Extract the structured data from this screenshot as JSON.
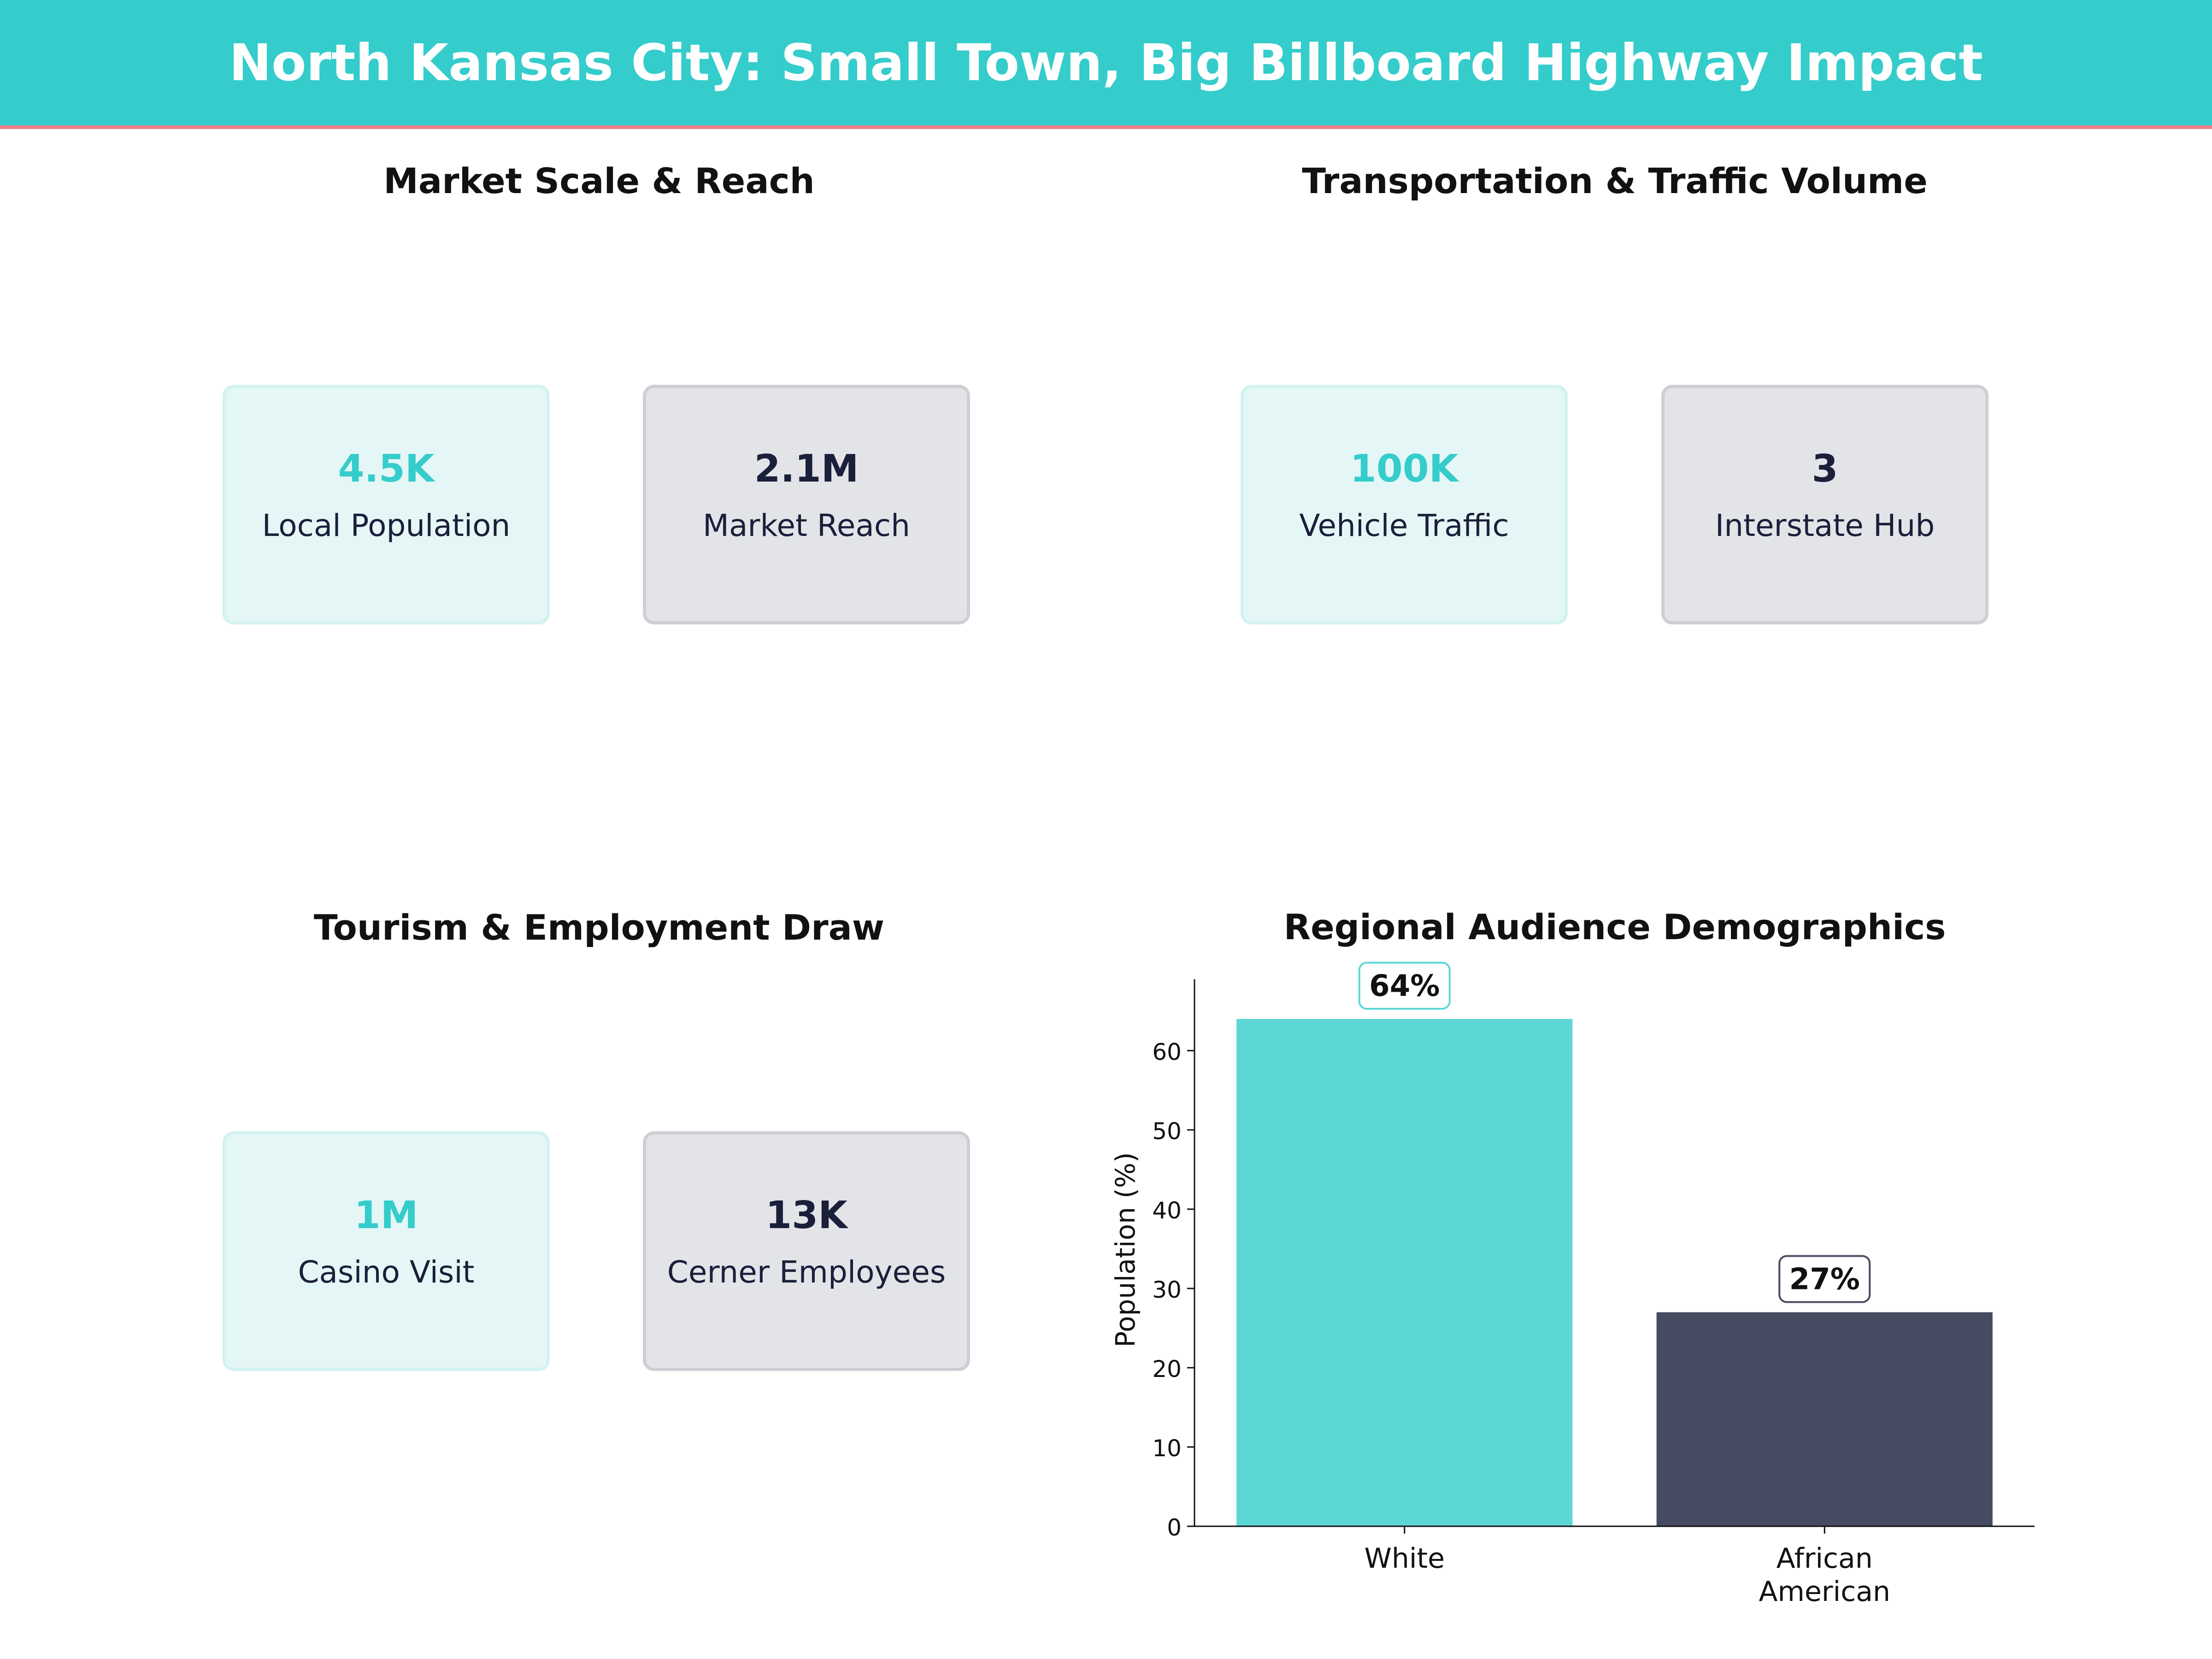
{
  "header": {
    "title": "North Kansas City: Small Town, Big Billboard Highway Impact",
    "background": "#35CCCC",
    "accent_line": "#F07F8A"
  },
  "panels": {
    "market": {
      "title": "Market Scale & Reach",
      "cards": [
        {
          "value": "4.5K",
          "label": "Local Population"
        },
        {
          "value": "2.1M",
          "label": "Market Reach"
        }
      ]
    },
    "transport": {
      "title": "Transportation & Traffic Volume",
      "cards": [
        {
          "value": "100K",
          "label": "Vehicle Traffic"
        },
        {
          "value": "3",
          "label": "Interstate Hub"
        }
      ]
    },
    "tourism": {
      "title": "Tourism & Employment Draw",
      "cards": [
        {
          "value": "1M",
          "label": "Casino Visit"
        },
        {
          "value": "13K",
          "label": "Cerner Employees"
        }
      ]
    }
  },
  "colors": {
    "teal": "#35CCCC",
    "bar_teal": "#5DD7D6",
    "navy": "#1A1F3A",
    "bar_navy": "#464B61"
  },
  "chart_data": {
    "type": "bar",
    "title": "Regional Audience Demographics",
    "categories": [
      "White",
      "African\nAmerican"
    ],
    "values": [
      64,
      27
    ],
    "value_labels": [
      "64%",
      "27%"
    ],
    "bar_colors": [
      "#5DD7D6",
      "#464B61"
    ],
    "label_border_colors": [
      "#5DD7D6",
      "#464B61"
    ],
    "xlabel": "",
    "ylabel": "Population (%)",
    "ylim": [
      0,
      69
    ],
    "yticks": [
      0,
      10,
      20,
      30,
      40,
      50,
      60
    ],
    "grid": false
  }
}
